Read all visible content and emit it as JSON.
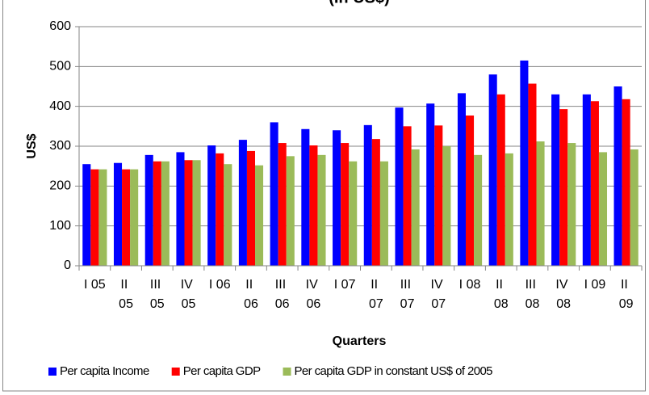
{
  "chart_data": {
    "type": "bar",
    "title": "(In US$)",
    "x_label": "Quarters",
    "y_label": "US$",
    "categories": [
      "I 05",
      "II 05",
      "III 05",
      "IV 05",
      "I 06",
      "II 06",
      "III 06",
      "IV 06",
      "I 07",
      "II 07",
      "III 07",
      "IV 07",
      "I 08",
      "II 08",
      "III 08",
      "IV 08",
      "I 09",
      "II 09"
    ],
    "series": [
      {
        "name": "Per capita Income",
        "color": "#0000ff",
        "values": [
          255,
          258,
          278,
          285,
          302,
          316,
          360,
          343,
          340,
          353,
          397,
          407,
          433,
          480,
          515,
          430,
          430,
          450
        ]
      },
      {
        "name": "Per capita GDP",
        "color": "#ff0000",
        "values": [
          242,
          242,
          262,
          265,
          282,
          288,
          308,
          302,
          308,
          318,
          350,
          352,
          377,
          430,
          457,
          393,
          413,
          418
        ]
      },
      {
        "name": "Per capita GDP in constant US$ of 2005",
        "color": "#9bbb59",
        "values": [
          242,
          242,
          262,
          265,
          255,
          252,
          275,
          278,
          262,
          262,
          292,
          300,
          278,
          282,
          312,
          308,
          285,
          292
        ]
      }
    ],
    "ylim": [
      0,
      600
    ],
    "yticks": [
      0,
      100,
      200,
      300,
      400,
      500,
      600
    ],
    "grid": true,
    "legend": "bottom"
  }
}
